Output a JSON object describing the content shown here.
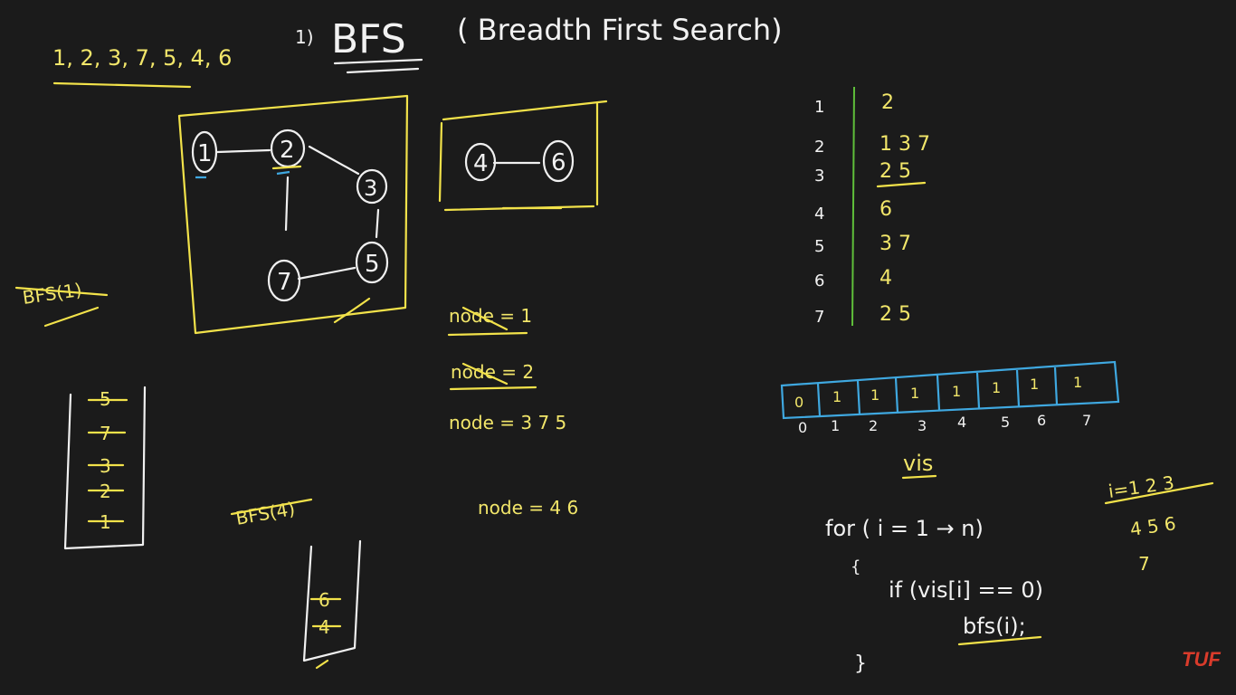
{
  "title": {
    "number": "1)",
    "main": "BFS",
    "sub": "( Breadth First Search)"
  },
  "order": "1, 2, 3, 7, 5, 4, 6",
  "graph1": {
    "nodes": [
      {
        "id": "1",
        "label": "1"
      },
      {
        "id": "2",
        "label": "2"
      },
      {
        "id": "3",
        "label": "3"
      },
      {
        "id": "7",
        "label": "7"
      },
      {
        "id": "5",
        "label": "5"
      }
    ],
    "edges": [
      [
        "1",
        "2"
      ],
      [
        "2",
        "3"
      ],
      [
        "2",
        "7"
      ],
      [
        "3",
        "5"
      ],
      [
        "7",
        "5"
      ]
    ]
  },
  "graph2": {
    "nodes": [
      {
        "id": "4",
        "label": "4"
      },
      {
        "id": "6",
        "label": "6"
      }
    ],
    "edges": [
      [
        "4",
        "6"
      ]
    ]
  },
  "adjacency": [
    {
      "node": "1",
      "list": "2"
    },
    {
      "node": "2",
      "list": "1  3  7"
    },
    {
      "node": "3",
      "list": "2  5"
    },
    {
      "node": "4",
      "list": "6"
    },
    {
      "node": "5",
      "list": "3  7"
    },
    {
      "node": "6",
      "list": "4"
    },
    {
      "node": "7",
      "list": "2  5"
    }
  ],
  "notes": {
    "bfs1": "BFS(1)",
    "node1": "node = 1",
    "node2": "node = 2",
    "node3": "node = 3 7 5",
    "bfs4": "BFS(4)",
    "node4": "node = 4 6"
  },
  "queue1": [
    "5",
    "7",
    "3",
    "2",
    "1"
  ],
  "queue2": [
    "6",
    "4"
  ],
  "vis": {
    "label": "vis",
    "cells": [
      "0",
      "1",
      "1",
      "1",
      "1",
      "1",
      "1",
      "1"
    ],
    "indices": [
      "0",
      "1",
      "2",
      "3",
      "4",
      "5",
      "6",
      "7"
    ]
  },
  "loop": {
    "for_line": "for ( i = 1 → n)",
    "open": "{",
    "if_line": "if (vis[i] == 0)",
    "call_line": "bfs(i);",
    "close": "}"
  },
  "counter": {
    "line1": "i=1  2  3",
    "line2": "4  5  6",
    "line3": "7"
  },
  "logo": "TUF",
  "colors": {
    "background": "#1b1b1b",
    "ink": "#f2e24a",
    "chalk": "#f0f0f0",
    "accent": "#3fa8e0",
    "separator": "#5fbf3a",
    "logo": "#d93b2b"
  }
}
